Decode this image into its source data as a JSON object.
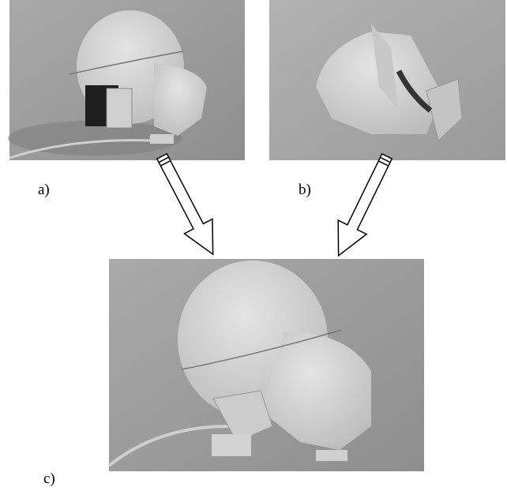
{
  "figure": {
    "labels": [
      "a)",
      "b)",
      "c)"
    ]
  }
}
